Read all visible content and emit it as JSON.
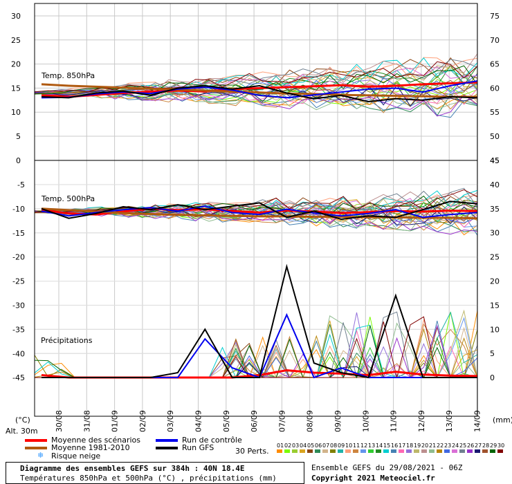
{
  "chart_data": {
    "type": "line",
    "title": "Diagramme des ensembles GEFS sur 384h : 40N 18.4E",
    "subtitle": "Températures 850hPa et 500hPa (°C) , précipitations (mm)",
    "x_ticks": [
      "30/08",
      "31/08",
      "01/09",
      "02/09",
      "03/09",
      "04/09",
      "05/09",
      "06/09",
      "07/09",
      "08/09",
      "09/09",
      "10/09",
      "11/09",
      "12/09",
      "13/09",
      "14/09"
    ],
    "left_axis_unit": "(°C)",
    "right_axis_unit": "(mm)",
    "altitude": "Alt. 30m",
    "panel_top": {
      "label": "Temp. 850hPa",
      "left_ticks": [
        "30",
        "25",
        "20",
        "15",
        "10",
        "5",
        "0"
      ],
      "right_ticks": [
        "75",
        "70",
        "65",
        "60",
        "55",
        "50",
        "45"
      ],
      "ylim": [
        0,
        30
      ]
    },
    "panel_bottom": {
      "label_temp": "Temp. 500hPa",
      "label_precip": "Précipitations",
      "left_ticks": [
        "-5",
        "-10",
        "-15",
        "-20",
        "-25",
        "-30",
        "-35",
        "-40",
        "-45"
      ],
      "right_ticks": [
        "45",
        "40",
        "35",
        "30",
        "25",
        "20",
        "15",
        "10",
        "5",
        "0"
      ],
      "temp_ylim": [
        -45,
        0
      ],
      "precip_ylim": [
        0,
        45
      ]
    },
    "series": [
      {
        "name": "Moyenne des scénarios",
        "color": "#ff0000",
        "t850": [
          13.5,
          13.2,
          13.6,
          14.0,
          14.3,
          14.5,
          14.3,
          14.8,
          15.0,
          15.2,
          15.4,
          15.6,
          15.3,
          15.5,
          15.8,
          16.0,
          16.2
        ],
        "t500": [
          -10.2,
          -11.0,
          -11.2,
          -10.6,
          -10.0,
          -10.3,
          -10.1,
          -10.5,
          -10.8,
          -10.4,
          -10.6,
          -10.9,
          -10.7,
          -10.5,
          -10.6,
          -10.4,
          -10.5
        ],
        "precip": [
          0.5,
          0,
          0,
          0,
          0,
          0,
          0,
          0,
          0.5,
          1.5,
          1.0,
          0.8,
          0.5,
          1.2,
          0.6,
          0.4,
          0.3
        ]
      },
      {
        "name": "Moyenne 1981-2010",
        "color": "#b05a10",
        "t850": [
          15.8,
          15.5,
          15.3,
          15.1,
          14.9,
          14.7,
          14.5,
          14.3,
          14.1,
          13.9,
          13.8,
          13.6,
          13.5,
          13.4,
          13.3,
          13.2,
          13.2
        ],
        "t500": [
          -10.0,
          -10.3,
          -10.6,
          -10.9,
          -11.1,
          -11.3,
          -11.4,
          -11.5,
          -11.6,
          -11.6,
          -11.7,
          -11.7,
          -11.8,
          -11.8,
          -11.9,
          -11.9,
          -12.0
        ]
      },
      {
        "name": "Run de contrôle",
        "color": "#0000ee",
        "t850": [
          13.0,
          13.1,
          13.8,
          14.2,
          13.9,
          14.8,
          15.2,
          14.6,
          13.5,
          13.0,
          13.6,
          14.2,
          14.8,
          15.0,
          14.2,
          15.5,
          16.5
        ],
        "t500": [
          -10.5,
          -11.5,
          -10.8,
          -10.2,
          -9.8,
          -10.5,
          -9.5,
          -10.8,
          -11.2,
          -10.1,
          -10.9,
          -11.5,
          -11.0,
          -10.2,
          -11.8,
          -11.2,
          -10.8
        ],
        "precip": [
          0,
          0,
          0,
          0,
          0,
          0,
          8,
          2,
          0,
          13,
          0,
          2,
          0,
          0,
          0,
          0,
          0
        ]
      },
      {
        "name": "Run GFS",
        "color": "#000000",
        "t850": [
          13.2,
          13.0,
          14.0,
          14.4,
          13.5,
          15.0,
          15.5,
          14.8,
          15.5,
          14.0,
          12.8,
          13.5,
          12.2,
          12.8,
          12.5,
          13.2,
          13.0
        ],
        "t500": [
          -10.0,
          -12.0,
          -11.0,
          -9.6,
          -10.2,
          -9.2,
          -10.2,
          -9.5,
          -8.8,
          -11.8,
          -10.5,
          -12.2,
          -11.5,
          -11.8,
          -10.2,
          -8.5,
          -9.0
        ],
        "precip": [
          0,
          0,
          0,
          0,
          0,
          1,
          10,
          0,
          0,
          23,
          3,
          1,
          0,
          17,
          0,
          0,
          0
        ]
      }
    ]
  },
  "legend": {
    "mean": "Moyenne des scénarios",
    "clim": "Moyenne 1981-2010",
    "snow": "Risque neige",
    "control": "Run de contrôle",
    "gfs": "Run GFS",
    "perts": "30 Perts.",
    "pert_numbers": [
      "01",
      "02",
      "03",
      "04",
      "05",
      "06",
      "07",
      "08",
      "09",
      "10",
      "11",
      "12",
      "13",
      "14",
      "15",
      "16",
      "17",
      "18",
      "19",
      "20",
      "21",
      "22",
      "23",
      "24",
      "25",
      "26",
      "27",
      "28",
      "29",
      "30"
    ],
    "pert_colors": [
      "#ff8c00",
      "#7cfc00",
      "#9acd32",
      "#daa520",
      "#8b4513",
      "#2e8b57",
      "#d2b48c",
      "#808000",
      "#20b2aa",
      "#ffa07a",
      "#cd853f",
      "#6495ed",
      "#32cd32",
      "#228b22",
      "#00ced1",
      "#4682b4",
      "#ff69b4",
      "#9370db",
      "#bdb76b",
      "#bc8f8f",
      "#8fbc8f",
      "#b8860b",
      "#4169e1",
      "#da70d6",
      "#708090",
      "#9932cc",
      "#191970",
      "#a0522d",
      "#006400",
      "#800000"
    ]
  },
  "footer": {
    "run": "Ensemble GEFS du 29/08/2021 - 06Z",
    "copyright": "Copyright 2021 Meteociel.fr"
  }
}
